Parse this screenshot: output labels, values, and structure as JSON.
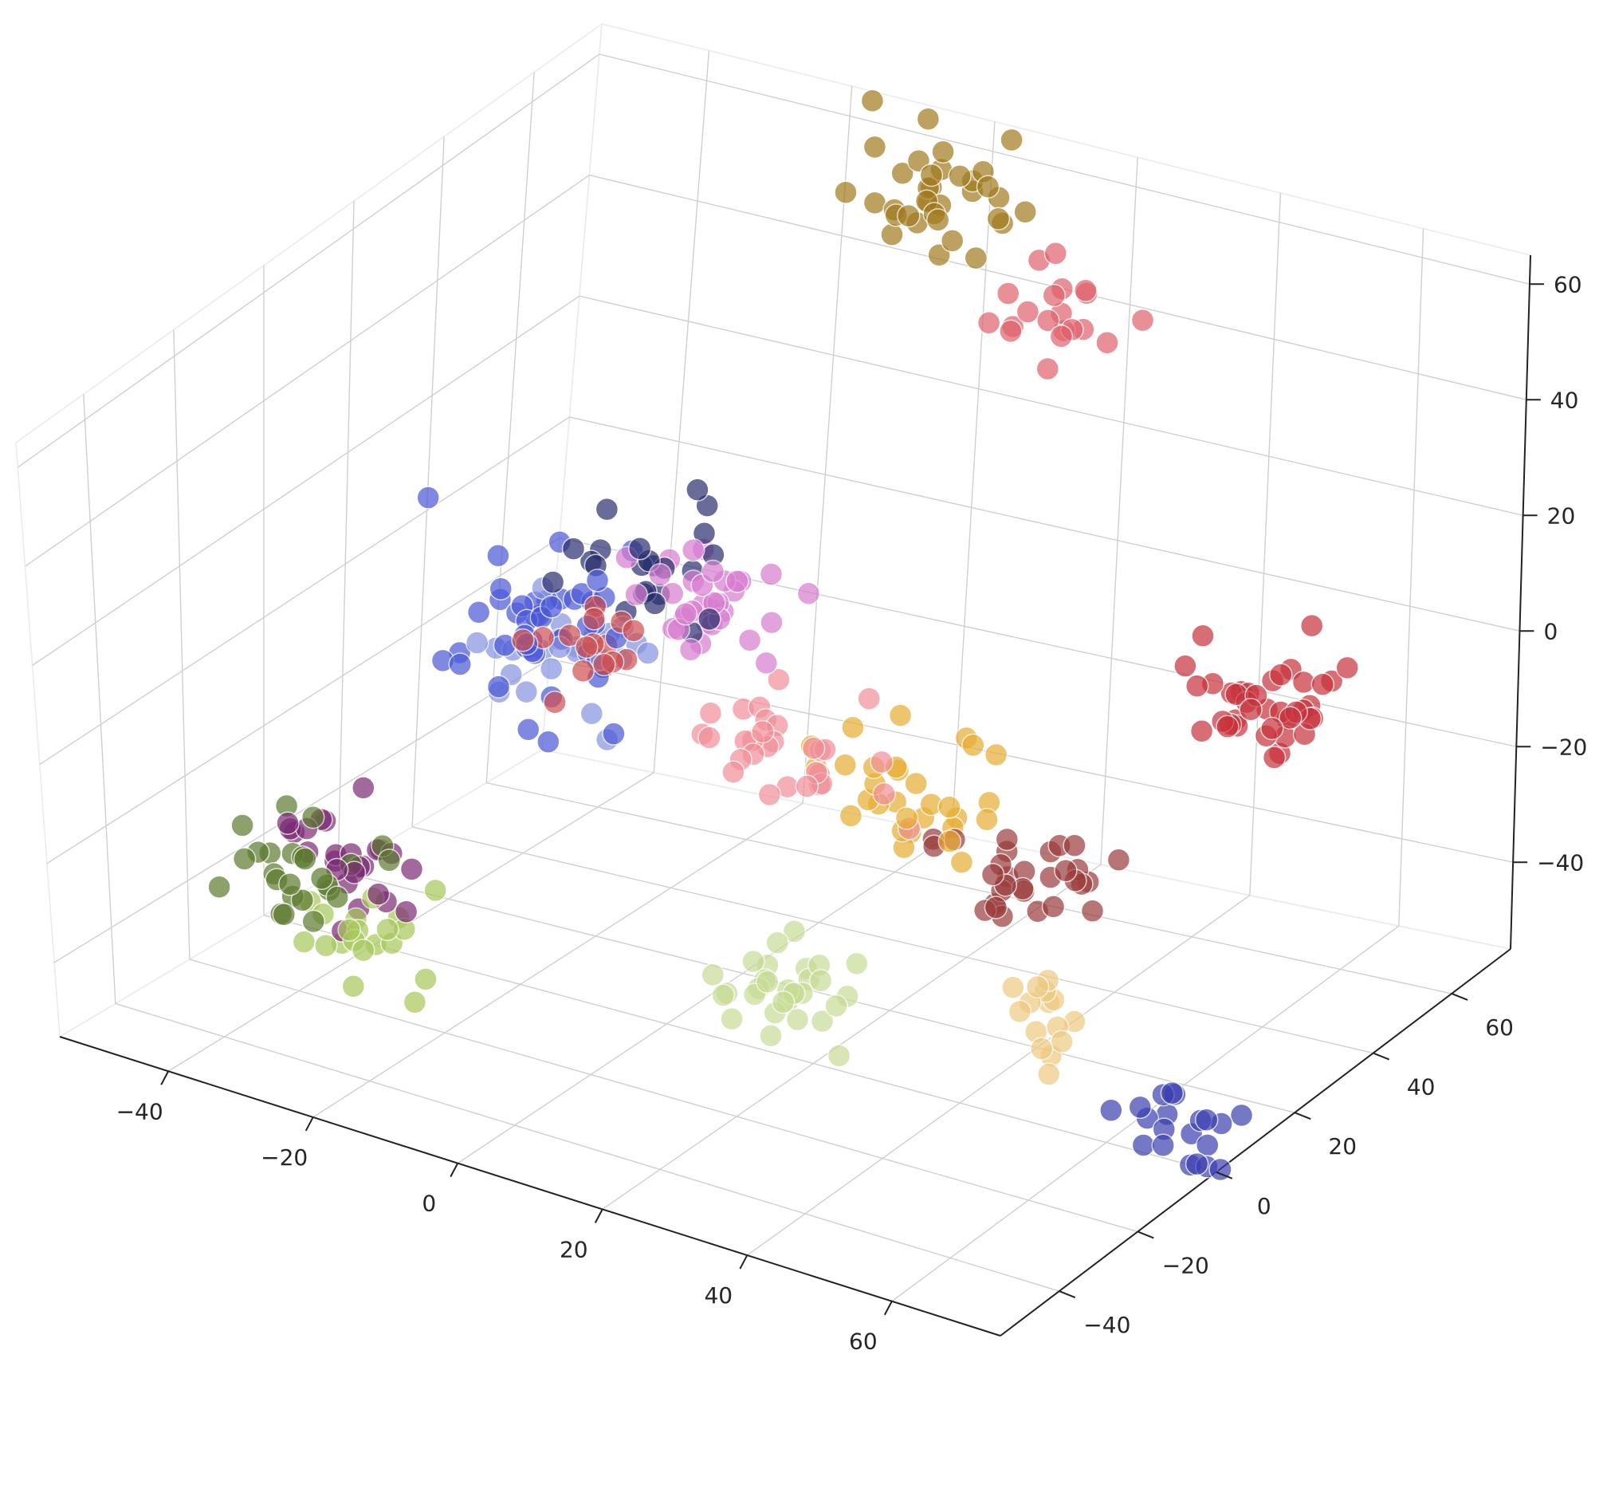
{
  "chart_data": {
    "type": "scatter",
    "projection": "3d",
    "grid": true,
    "xlim": [
      -55,
      75
    ],
    "ylim": [
      -55,
      75
    ],
    "zlim": [
      -55,
      65
    ],
    "x_ticks": [
      -40,
      -20,
      0,
      20,
      40,
      60
    ],
    "y_ticks": [
      -40,
      -20,
      0,
      20,
      40,
      60
    ],
    "z_ticks": [
      -40,
      -20,
      0,
      20,
      40,
      60
    ],
    "x_tick_labels": [
      "−40",
      "−20",
      "0",
      "20",
      "40",
      "60"
    ],
    "y_tick_labels": [
      "−40",
      "−20",
      "0",
      "20",
      "40",
      "60"
    ],
    "z_tick_labels": [
      "−40",
      "−20",
      "0",
      "20",
      "40",
      "60"
    ],
    "title": "",
    "xlabel": "",
    "ylabel": "",
    "zlabel": "",
    "clusters": [
      {
        "color": "#a07a1e",
        "center": [
          -5,
          70,
          55
        ],
        "spread": [
          10,
          8,
          9
        ],
        "count": 35
      },
      {
        "color": "#e0616c",
        "center": [
          10,
          75,
          35
        ],
        "spread": [
          7,
          6,
          7
        ],
        "count": 20
      },
      {
        "color": "#c8323c",
        "center": [
          55,
          50,
          -5
        ],
        "spread": [
          8,
          9,
          7
        ],
        "count": 40
      },
      {
        "color": "#9a3b3b",
        "center": [
          40,
          20,
          -25
        ],
        "spread": [
          8,
          8,
          7
        ],
        "count": 30
      },
      {
        "color": "#e8ad33",
        "center": [
          25,
          20,
          -15
        ],
        "spread": [
          12,
          10,
          9
        ],
        "count": 30
      },
      {
        "color": "#edca80",
        "center": [
          48,
          5,
          -38
        ],
        "spread": [
          6,
          6,
          5
        ],
        "count": 15
      },
      {
        "color": "#3a3fb0",
        "center": [
          62,
          15,
          -58
        ],
        "spread": [
          6,
          7,
          5
        ],
        "count": 20
      },
      {
        "color": "#4b58d6",
        "center": [
          -20,
          5,
          10
        ],
        "spread": [
          10,
          10,
          12
        ],
        "count": 45
      },
      {
        "color": "#8694e2",
        "center": [
          -18,
          10,
          0
        ],
        "spread": [
          9,
          9,
          9
        ],
        "count": 25
      },
      {
        "color": "#2a2e6e",
        "center": [
          -10,
          15,
          18
        ],
        "spread": [
          13,
          9,
          14
        ],
        "count": 25
      },
      {
        "color": "#d77dd0",
        "center": [
          0,
          10,
          18
        ],
        "spread": [
          9,
          9,
          8
        ],
        "count": 35
      },
      {
        "color": "#f08f98",
        "center": [
          10,
          10,
          -5
        ],
        "spread": [
          9,
          8,
          8
        ],
        "count": 30
      },
      {
        "color": "#d05050",
        "center": [
          -10,
          0,
          10
        ],
        "spread": [
          8,
          8,
          8
        ],
        "count": 15
      },
      {
        "color": "#7a2a73",
        "center": [
          -35,
          -15,
          -30
        ],
        "spread": [
          8,
          8,
          7
        ],
        "count": 25
      },
      {
        "color": "#5c7a2e",
        "center": [
          -35,
          -25,
          -30
        ],
        "spread": [
          9,
          8,
          7
        ],
        "count": 25
      },
      {
        "color": "#a8c85a",
        "center": [
          -30,
          -20,
          -42
        ],
        "spread": [
          8,
          8,
          6
        ],
        "count": 20
      },
      {
        "color": "#c7dc95",
        "center": [
          18,
          -5,
          -38
        ],
        "spread": [
          8,
          8,
          7
        ],
        "count": 30
      }
    ]
  }
}
